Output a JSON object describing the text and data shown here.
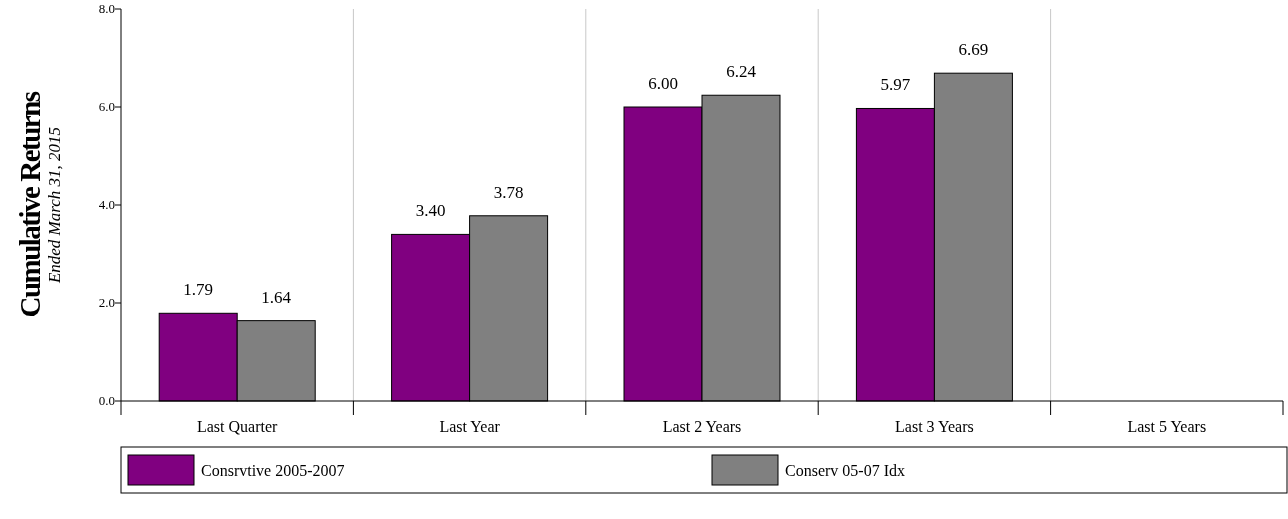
{
  "chart_data": {
    "type": "bar",
    "ylabel": "Cumulative Returns",
    "subtitle": "Ended March 31, 2015",
    "categories": [
      "Last Quarter",
      "Last Year",
      "Last 2 Years",
      "Last 3 Years",
      "Last 5 Years"
    ],
    "series": [
      {
        "name": "Consrvtive 2005-2007",
        "color": "#800080",
        "values": [
          1.79,
          3.4,
          6.0,
          5.97,
          null
        ],
        "value_labels": [
          "1.79",
          "3.40",
          "6.00",
          "5.97",
          null
        ]
      },
      {
        "name": "Conserv 05-07 Idx",
        "color": "#808080",
        "values": [
          1.64,
          3.78,
          6.24,
          6.69,
          null
        ],
        "value_labels": [
          "1.64",
          "3.78",
          "6.24",
          "6.69",
          null
        ]
      }
    ],
    "ylim": [
      0,
      8
    ],
    "yticks": [
      {
        "value": 0,
        "label": "0.0"
      },
      {
        "value": 2,
        "label": "2.0"
      },
      {
        "value": 4,
        "label": "4.0"
      },
      {
        "value": 6,
        "label": "6.0"
      },
      {
        "value": 8,
        "label": "8.0"
      }
    ],
    "grid": "x",
    "legend": "bottom"
  }
}
